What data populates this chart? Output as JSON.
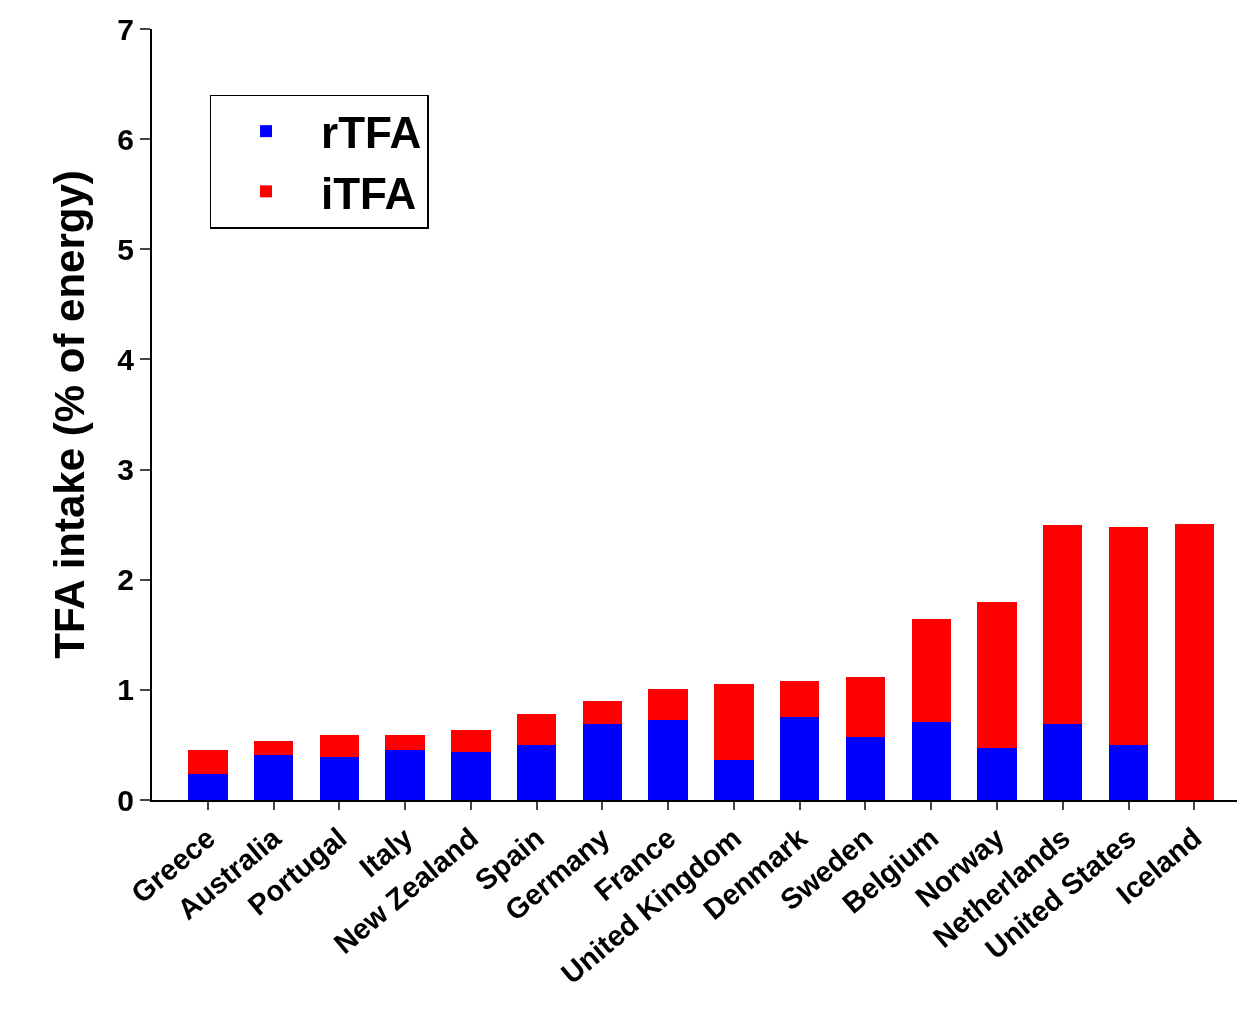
{
  "chart_data": {
    "type": "bar",
    "ylabel": "TFA intake (% of energy)",
    "stacked": true,
    "categories": [
      "Greece",
      "Australia",
      "Portugal",
      "Italy",
      "New Zealand",
      "Spain",
      "Germany",
      "France",
      "United Kingdom",
      "Denmark",
      "Sweden",
      "Belgium",
      "Norway",
      "Netherlands",
      "United States",
      "Iceland"
    ],
    "series": [
      {
        "name": "rTFA",
        "color": "#0000ff",
        "values": [
          0.24,
          0.41,
          0.39,
          0.45,
          0.44,
          0.5,
          0.69,
          0.73,
          0.36,
          0.75,
          0.57,
          0.71,
          0.47,
          0.69,
          0.5,
          null
        ]
      },
      {
        "name": "iTFA",
        "color": "#ff0000",
        "values": [
          0.21,
          0.13,
          0.2,
          0.14,
          0.2,
          0.28,
          0.21,
          0.28,
          0.69,
          0.33,
          0.55,
          0.93,
          1.33,
          1.81,
          1.98,
          2.51
        ]
      }
    ],
    "ylim": [
      0,
      7
    ],
    "yticks": [
      0,
      1,
      2,
      3,
      4,
      5,
      6,
      7
    ],
    "legend": "top left"
  }
}
